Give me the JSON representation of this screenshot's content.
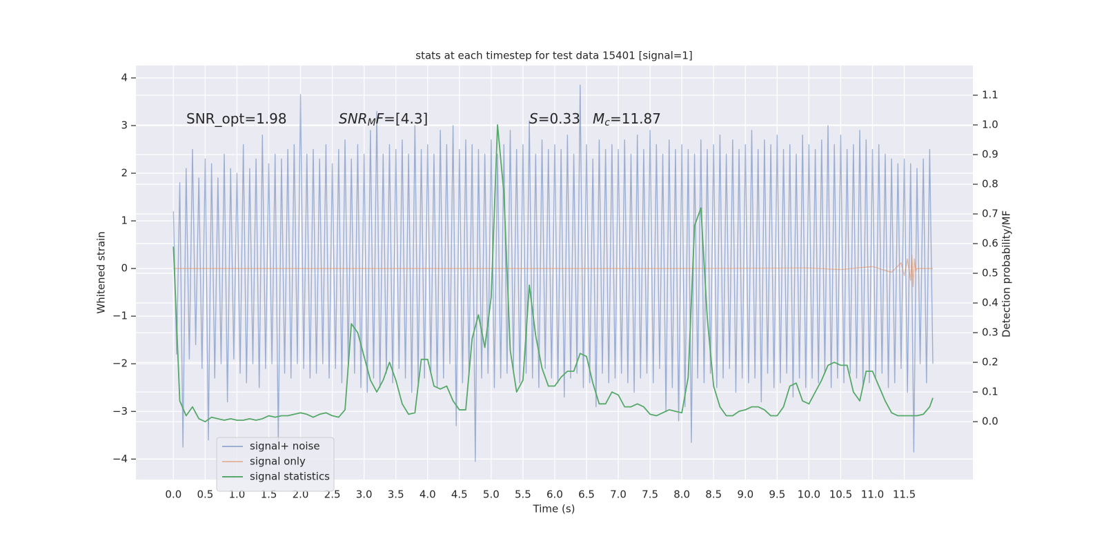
{
  "chart_data": {
    "type": "line",
    "title": "stats at each timestep for test data 15401 [signal=1]",
    "x_label": "Time (s)",
    "y_label": "Whitened strain",
    "y2_label": "Detection probability/MF",
    "grid": true,
    "legend": "lower left",
    "xlim": [
      -0.59,
      12.58
    ],
    "ylim": [
      -4.43,
      4.26
    ],
    "y2lim": [
      -0.195,
      1.2
    ],
    "xticks": [
      {
        "value": 0,
        "label": "0.0"
      },
      0.5,
      {
        "value": 1,
        "label": "1.0"
      },
      1.5,
      {
        "value": 2,
        "label": "2.0"
      },
      2.5,
      {
        "value": 3,
        "label": "3.0"
      },
      3.5,
      {
        "value": 4,
        "label": "4.0"
      },
      4.5,
      {
        "value": 5,
        "label": "5.0"
      },
      5.5,
      {
        "value": 6,
        "label": "6.0"
      },
      6.5,
      {
        "value": 7,
        "label": "7.0"
      },
      7.5,
      {
        "value": 8,
        "label": "8.0"
      },
      8.5,
      {
        "value": 9,
        "label": "9.0"
      },
      9.5,
      {
        "value": 10,
        "label": "10.0"
      },
      10.5,
      {
        "value": 11,
        "label": "11.0"
      },
      11.5
    ],
    "yticks": [
      {
        "value": -4,
        "label": "−4"
      },
      {
        "value": -3,
        "label": "−3"
      },
      {
        "value": -2,
        "label": "−2"
      },
      {
        "value": -1,
        "label": "−1"
      },
      0,
      1,
      2,
      3,
      4
    ],
    "y2ticks": [
      {
        "value": 0,
        "label": "0.0"
      },
      0.1,
      0.2,
      0.3,
      0.4,
      0.5,
      0.6,
      0.7,
      0.8,
      0.9,
      {
        "value": 1,
        "label": "1.0"
      },
      1.1
    ],
    "annotations": [
      {
        "segments": [
          {
            "text": "SNR_opt=1.98"
          }
        ]
      },
      {
        "segments": [
          {
            "text": "SNR",
            "italic": true
          },
          {
            "text": "M",
            "italic": true,
            "sub": true
          },
          {
            "text": "F",
            "italic": true
          },
          {
            "text": "=[4.3]"
          }
        ]
      },
      {
        "segments": [
          {
            "text": "S",
            "italic": true
          },
          {
            "text": "=0.33"
          }
        ]
      },
      {
        "segments": [
          {
            "text": "M",
            "italic": true
          },
          {
            "text": "c",
            "italic": true,
            "sub": true
          },
          {
            "text": "=11.87"
          }
        ]
      }
    ],
    "series": [
      {
        "name": "signal+ noise",
        "color": "#4c72b0",
        "alpha": 0.5,
        "x": [
          0,
          0.05,
          0.1,
          0.15,
          0.2,
          0.25,
          0.3,
          0.35,
          0.4,
          0.45,
          0.5,
          0.55,
          0.6,
          0.65,
          0.7,
          0.75,
          0.8,
          0.85,
          0.9,
          0.95,
          1,
          1.05,
          1.1,
          1.15,
          1.2,
          1.25,
          1.3,
          1.35,
          1.4,
          1.45,
          1.5,
          1.55,
          1.6,
          1.65,
          1.7,
          1.75,
          1.8,
          1.85,
          1.9,
          1.95,
          2,
          2.05,
          2.1,
          2.15,
          2.2,
          2.25,
          2.3,
          2.35,
          2.4,
          2.45,
          2.5,
          2.55,
          2.6,
          2.65,
          2.7,
          2.75,
          2.8,
          2.85,
          2.9,
          2.95,
          3,
          3.05,
          3.1,
          3.15,
          3.2,
          3.25,
          3.3,
          3.35,
          3.4,
          3.45,
          3.5,
          3.55,
          3.6,
          3.65,
          3.7,
          3.75,
          3.8,
          3.85,
          3.9,
          3.95,
          4,
          4.05,
          4.1,
          4.15,
          4.2,
          4.25,
          4.3,
          4.35,
          4.4,
          4.45,
          4.5,
          4.55,
          4.6,
          4.65,
          4.7,
          4.75,
          4.8,
          4.85,
          4.9,
          4.95,
          5,
          5.05,
          5.1,
          5.15,
          5.2,
          5.25,
          5.3,
          5.35,
          5.4,
          5.45,
          5.5,
          5.55,
          5.6,
          5.65,
          5.7,
          5.75,
          5.8,
          5.85,
          5.9,
          5.95,
          6,
          6.05,
          6.1,
          6.15,
          6.2,
          6.25,
          6.3,
          6.35,
          6.4,
          6.45,
          6.5,
          6.55,
          6.6,
          6.65,
          6.7,
          6.75,
          6.8,
          6.85,
          6.9,
          6.95,
          7,
          7.05,
          7.1,
          7.15,
          7.2,
          7.25,
          7.3,
          7.35,
          7.4,
          7.45,
          7.5,
          7.55,
          7.6,
          7.65,
          7.7,
          7.75,
          7.8,
          7.85,
          7.9,
          7.95,
          8,
          8.05,
          8.1,
          8.15,
          8.2,
          8.25,
          8.3,
          8.35,
          8.4,
          8.45,
          8.5,
          8.55,
          8.6,
          8.65,
          8.7,
          8.75,
          8.8,
          8.85,
          8.9,
          8.95,
          9,
          9.05,
          9.1,
          9.15,
          9.2,
          9.25,
          9.3,
          9.35,
          9.4,
          9.45,
          9.5,
          9.55,
          9.6,
          9.65,
          9.7,
          9.75,
          9.8,
          9.85,
          9.9,
          9.95,
          10,
          10.05,
          10.1,
          10.15,
          10.2,
          10.25,
          10.3,
          10.35,
          10.4,
          10.45,
          10.5,
          10.55,
          10.6,
          10.65,
          10.7,
          10.75,
          10.8,
          10.85,
          10.9,
          10.95,
          11,
          11.05,
          11.1,
          11.15,
          11.2,
          11.25,
          11.3,
          11.35,
          11.4,
          11.45,
          11.5,
          11.55,
          11.6,
          11.65,
          11.7,
          11.75,
          11.8,
          11.85,
          11.9,
          11.95
        ],
        "values": [
          1.2,
          -1.8,
          1.8,
          -3.75,
          2.1,
          -1.9,
          2.5,
          -1.6,
          1.9,
          -2.1,
          2.3,
          -3.6,
          2.2,
          -2.3,
          1.9,
          -2.0,
          2.4,
          -2.8,
          2.1,
          -1.9,
          2.0,
          -2.2,
          2.6,
          -2.4,
          2.1,
          -2.0,
          2.3,
          -2.5,
          2.8,
          -2.1,
          2.2,
          -2.0,
          2.4,
          -3.65,
          2.3,
          -2.2,
          2.5,
          -2.3,
          2.6,
          -2.0,
          3.65,
          -2.1,
          2.4,
          -2.3,
          2.5,
          -2.2,
          2.3,
          -2.0,
          2.6,
          -2.3,
          2.2,
          -2.1,
          2.5,
          -2.4,
          2.7,
          -2.0,
          2.3,
          -2.2,
          2.6,
          -2.5,
          2.4,
          -2.6,
          2.9,
          -2.3,
          3.3,
          -2.5,
          2.4,
          -2.2,
          2.6,
          -2.4,
          2.5,
          -2.1,
          2.7,
          -2.3,
          2.4,
          -2.6,
          3.0,
          -2.4,
          2.5,
          -2.3,
          2.6,
          -2.2,
          2.4,
          -2.5,
          2.9,
          -2.3,
          2.6,
          -2.0,
          3.0,
          -3.3,
          2.5,
          -2.4,
          2.7,
          -2.2,
          2.6,
          -4.05,
          2.5,
          -2.3,
          2.4,
          -2.2,
          2.7,
          -2.5,
          2.4,
          -2.3,
          2.6,
          -2.2,
          2.9,
          -2.1,
          2.5,
          -2.4,
          2.6,
          -2.2,
          3.1,
          -2.3,
          2.4,
          -2.5,
          2.7,
          -2.1,
          2.5,
          -2.3,
          2.6,
          -2.4,
          2.5,
          -2.7,
          2.8,
          -2.3,
          2.4,
          -2.2,
          3.85,
          -2.5,
          2.6,
          -2.4,
          2.3,
          -2.9,
          2.7,
          -2.2,
          2.5,
          -2.4,
          2.6,
          -2.3,
          2.5,
          -2.2,
          2.7,
          -2.4,
          2.4,
          -2.6,
          2.8,
          -2.3,
          2.5,
          -2.2,
          2.9,
          -2.4,
          2.6,
          -2.1,
          2.4,
          -3.0,
          2.7,
          -2.5,
          2.5,
          -3.2,
          2.6,
          -2.9,
          2.5,
          -3.65,
          2.4,
          -2.3,
          2.7,
          -2.4,
          2.5,
          -2.2,
          2.6,
          -2.5,
          2.8,
          -2.3,
          2.4,
          -2.1,
          2.7,
          -2.6,
          2.5,
          -2.3,
          2.6,
          -2.4,
          2.9,
          -2.3,
          2.5,
          -2.8,
          2.7,
          -2.2,
          2.6,
          -2.5,
          2.8,
          -2.4,
          2.5,
          -2.2,
          2.6,
          -2.7,
          2.4,
          -2.3,
          2.8,
          -2.5,
          2.6,
          -2.3,
          2.5,
          -2.4,
          2.7,
          -2.2,
          3.0,
          -2.5,
          2.6,
          -2.3,
          2.8,
          -2.4,
          2.5,
          -2.2,
          2.6,
          -2.3,
          2.9,
          -2.5,
          2.7,
          -2.4,
          2.5,
          -2.3,
          2.6,
          -2.2,
          2.4,
          -2.5,
          2.3,
          -2.4,
          2.2,
          -2.1,
          2.3,
          -2.6,
          2.2,
          -3.85,
          2.1,
          -2.0,
          2.3,
          -2.4,
          2.5,
          -2.0
        ]
      },
      {
        "name": "signal only",
        "color": "#dd8452",
        "alpha": 0.5,
        "x": [
          0,
          2,
          4,
          6,
          8,
          10,
          10.5,
          11,
          11.3,
          11.45,
          11.5,
          11.55,
          11.6,
          11.62,
          11.64,
          11.66,
          11.68,
          11.7,
          11.8,
          11.95
        ],
        "values": [
          0,
          0,
          0,
          0,
          0,
          0.01,
          -0.02,
          0.04,
          -0.08,
          0.12,
          -0.15,
          0.2,
          -0.25,
          0.28,
          -0.38,
          0.2,
          -0.05,
          0,
          0,
          0
        ]
      },
      {
        "name": "signal statistics",
        "color": "#55a868",
        "alpha": 1,
        "axis": "y2",
        "x": [
          0,
          0.1,
          0.2,
          0.3,
          0.4,
          0.5,
          0.6,
          0.7,
          0.8,
          0.9,
          1,
          1.1,
          1.2,
          1.3,
          1.4,
          1.5,
          1.6,
          1.7,
          1.8,
          1.9,
          2,
          2.1,
          2.2,
          2.3,
          2.4,
          2.5,
          2.6,
          2.7,
          2.8,
          2.9,
          3,
          3.1,
          3.2,
          3.3,
          3.4,
          3.5,
          3.6,
          3.7,
          3.8,
          3.9,
          4,
          4.1,
          4.2,
          4.3,
          4.4,
          4.5,
          4.6,
          4.7,
          4.8,
          4.9,
          5,
          5.1,
          5.2,
          5.3,
          5.4,
          5.5,
          5.6,
          5.7,
          5.8,
          5.9,
          6,
          6.1,
          6.2,
          6.3,
          6.4,
          6.5,
          6.6,
          6.7,
          6.8,
          6.9,
          7,
          7.1,
          7.2,
          7.3,
          7.4,
          7.5,
          7.6,
          7.7,
          7.8,
          7.9,
          8,
          8.1,
          8.2,
          8.3,
          8.4,
          8.5,
          8.6,
          8.7,
          8.8,
          8.9,
          9,
          9.1,
          9.2,
          9.3,
          9.4,
          9.5,
          9.6,
          9.7,
          9.8,
          9.9,
          10,
          10.1,
          10.2,
          10.3,
          10.4,
          10.5,
          10.6,
          10.7,
          10.8,
          10.9,
          11,
          11.1,
          11.2,
          11.3,
          11.4,
          11.5,
          11.6,
          11.7,
          11.8,
          11.9,
          11.95
        ],
        "values": [
          0.59,
          0.07,
          0.02,
          0.05,
          0.01,
          0,
          0.015,
          0.01,
          0.005,
          0.01,
          0.005,
          0.005,
          0.01,
          0.005,
          0.01,
          0.02,
          0.015,
          0.02,
          0.02,
          0.025,
          0.03,
          0.025,
          0.015,
          0.025,
          0.03,
          0.02,
          0.015,
          0.04,
          0.33,
          0.3,
          0.22,
          0.14,
          0.1,
          0.14,
          0.2,
          0.14,
          0.06,
          0.025,
          0.03,
          0.21,
          0.21,
          0.12,
          0.11,
          0.12,
          0.07,
          0.04,
          0.04,
          0.28,
          0.36,
          0.25,
          0.42,
          1.0,
          0.77,
          0.24,
          0.1,
          0.14,
          0.46,
          0.29,
          0.18,
          0.12,
          0.12,
          0.15,
          0.17,
          0.17,
          0.23,
          0.22,
          0.13,
          0.06,
          0.06,
          0.1,
          0.09,
          0.05,
          0.05,
          0.06,
          0.05,
          0.025,
          0.02,
          0.03,
          0.04,
          0.035,
          0.03,
          0.15,
          0.66,
          0.72,
          0.35,
          0.12,
          0.05,
          0.02,
          0.02,
          0.035,
          0.04,
          0.05,
          0.05,
          0.04,
          0.02,
          0.02,
          0.05,
          0.12,
          0.13,
          0.07,
          0.06,
          0.1,
          0.14,
          0.19,
          0.2,
          0.19,
          0.19,
          0.1,
          0.07,
          0.17,
          0.17,
          0.12,
          0.07,
          0.03,
          0.02,
          0.02,
          0.02,
          0.02,
          0.025,
          0.05,
          0.08
        ]
      }
    ]
  }
}
